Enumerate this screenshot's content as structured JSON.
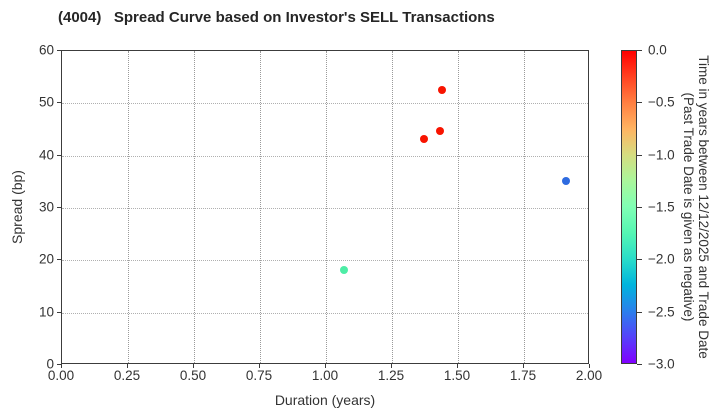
{
  "chart_data": {
    "type": "scatter",
    "title": "(4004)   Spread Curve based on Investor's SELL Transactions",
    "xlabel": "Duration (years)",
    "ylabel": "Spread (bp)",
    "xlim": [
      0.0,
      2.0
    ],
    "ylim": [
      0,
      60
    ],
    "grid": {
      "style": "dotted",
      "on": true
    },
    "xticks": [
      {
        "value": 0.0,
        "label": "0.00"
      },
      {
        "value": 0.25,
        "label": "0.25"
      },
      {
        "value": 0.5,
        "label": "0.50"
      },
      {
        "value": 0.75,
        "label": "0.75"
      },
      {
        "value": 1.0,
        "label": "1.00"
      },
      {
        "value": 1.25,
        "label": "1.25"
      },
      {
        "value": 1.5,
        "label": "1.50"
      },
      {
        "value": 1.75,
        "label": "1.75"
      },
      {
        "value": 2.0,
        "label": "2.00"
      }
    ],
    "yticks": [
      {
        "value": 0,
        "label": "0"
      },
      {
        "value": 10,
        "label": "10"
      },
      {
        "value": 20,
        "label": "20"
      },
      {
        "value": 30,
        "label": "30"
      },
      {
        "value": 40,
        "label": "40"
      },
      {
        "value": 50,
        "label": "50"
      },
      {
        "value": 60,
        "label": "60"
      }
    ],
    "points": [
      {
        "x": 1.44,
        "y": 52.6,
        "time": 0.0,
        "color": "#f81400"
      },
      {
        "x": 1.43,
        "y": 44.8,
        "time": 0.0,
        "color": "#f81400"
      },
      {
        "x": 1.37,
        "y": 43.2,
        "time": 0.0,
        "color": "#f81400"
      },
      {
        "x": 1.07,
        "y": 18.1,
        "time": -1.65,
        "color": "#4deda6"
      },
      {
        "x": 1.91,
        "y": 35.2,
        "time": -2.55,
        "color": "#2e6be0"
      }
    ],
    "colorbar": {
      "vmax": 0.0,
      "vmin": -3.0,
      "colormap": "rainbow",
      "label_lines": [
        "Time in years between 12/12/2025 and Trade Date",
        "(Past Trade Date is given as negative)"
      ],
      "ticks": [
        {
          "value": 0.0,
          "label": "0.0"
        },
        {
          "value": -0.5,
          "label": "−0.5"
        },
        {
          "value": -1.0,
          "label": "−1.0"
        },
        {
          "value": -1.5,
          "label": "−1.5"
        },
        {
          "value": -2.0,
          "label": "−2.0"
        },
        {
          "value": -2.5,
          "label": "−2.5"
        },
        {
          "value": -3.0,
          "label": "−3.0"
        }
      ],
      "gradient": [
        {
          "pos": 0,
          "color": "#ff0000"
        },
        {
          "pos": 8.33,
          "color": "#ff4221"
        },
        {
          "pos": 16.67,
          "color": "#ff8042"
        },
        {
          "pos": 25,
          "color": "#ffb462"
        },
        {
          "pos": 33.33,
          "color": "#d5dd80"
        },
        {
          "pos": 41.67,
          "color": "#aaf69b"
        },
        {
          "pos": 50,
          "color": "#80ffb4"
        },
        {
          "pos": 58.33,
          "color": "#55f6b3"
        },
        {
          "pos": 66.67,
          "color": "#2addc9"
        },
        {
          "pos": 75,
          "color": "#00b4dd"
        },
        {
          "pos": 83.33,
          "color": "#2a80ec"
        },
        {
          "pos": 91.67,
          "color": "#5542fa"
        },
        {
          "pos": 100,
          "color": "#8000ff"
        }
      ]
    }
  },
  "palette": {
    "background": "#ffffff",
    "spine": "#3c3c3c",
    "grid_v": "#9a9a9a",
    "grid_h": "#b0b0b0",
    "title_color": "#262626",
    "text_color": "#333333"
  }
}
